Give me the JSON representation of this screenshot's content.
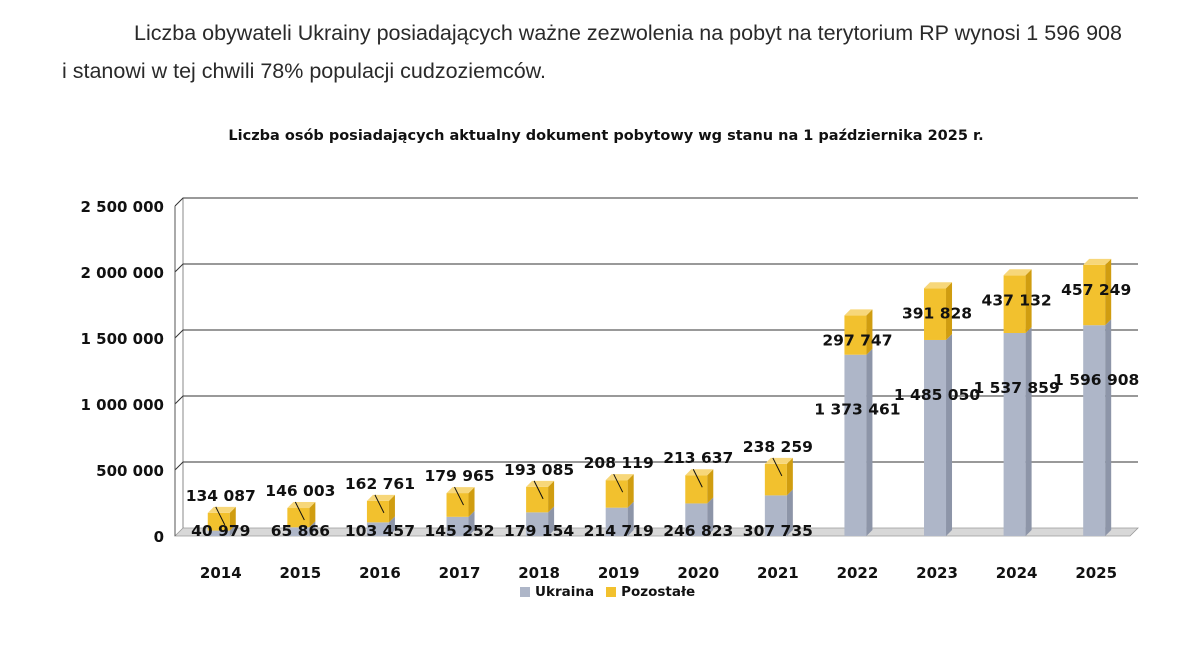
{
  "intro": {
    "line1": "Liczba obywateli Ukrainy posiadających ważne zezwolenia na pobyt na terytorium RP wynosi 1 596 908",
    "line2": "i stanowi w tej chwili 78% populacji cudzoziemców."
  },
  "colors": {
    "ukraina": "#aeb6c8",
    "ukraina_side": "#8d95a8",
    "pozostale": "#f2c12e",
    "pozostale_side": "#d09d10",
    "pozostale_top": "#f7d77a",
    "grid": "#333333",
    "floor": "#d8d8d8"
  },
  "chart_data": {
    "type": "bar",
    "stacked": true,
    "three_d": true,
    "title": "Liczba osób posiadających aktualny dokument pobytowy wg stanu na 1 października 2025 r.",
    "categories": [
      "2014",
      "2015",
      "2016",
      "2017",
      "2018",
      "2019",
      "2020",
      "2021",
      "2022",
      "2023",
      "2024",
      "2025"
    ],
    "series": [
      {
        "name": "Ukraina",
        "values": [
          40979,
          65866,
          103457,
          145252,
          179154,
          214719,
          246823,
          307735,
          1373461,
          1485050,
          1537859,
          1596908
        ]
      },
      {
        "name": "Pozostałe",
        "values": [
          134087,
          146003,
          162761,
          179965,
          193085,
          208119,
          213637,
          238259,
          297747,
          391828,
          437132,
          457249
        ]
      }
    ],
    "value_labels": {
      "Ukraina": [
        "40 979",
        "65 866",
        "103 457",
        "145 252",
        "179 154",
        "214 719",
        "246 823",
        "307 735",
        "1 373 461",
        "1 485 050",
        "1 537 859",
        "1 596 908"
      ],
      "Pozostałe": [
        "134 087",
        "146 003",
        "162 761",
        "179 965",
        "193 085",
        "208 119",
        "213 637",
        "238 259",
        "297 747",
        "391 828",
        "437 132",
        "457 249"
      ]
    },
    "y_ticks": [
      0,
      500000,
      1000000,
      1500000,
      2000000,
      2500000
    ],
    "y_tick_labels": [
      "0",
      "500 000",
      "1 000 000",
      "1 500 000",
      "2 000 000",
      "2 500 000"
    ],
    "ylim": [
      0,
      2500000
    ],
    "xlabel": "",
    "ylabel": "",
    "grid": true,
    "legend_position": "bottom"
  }
}
